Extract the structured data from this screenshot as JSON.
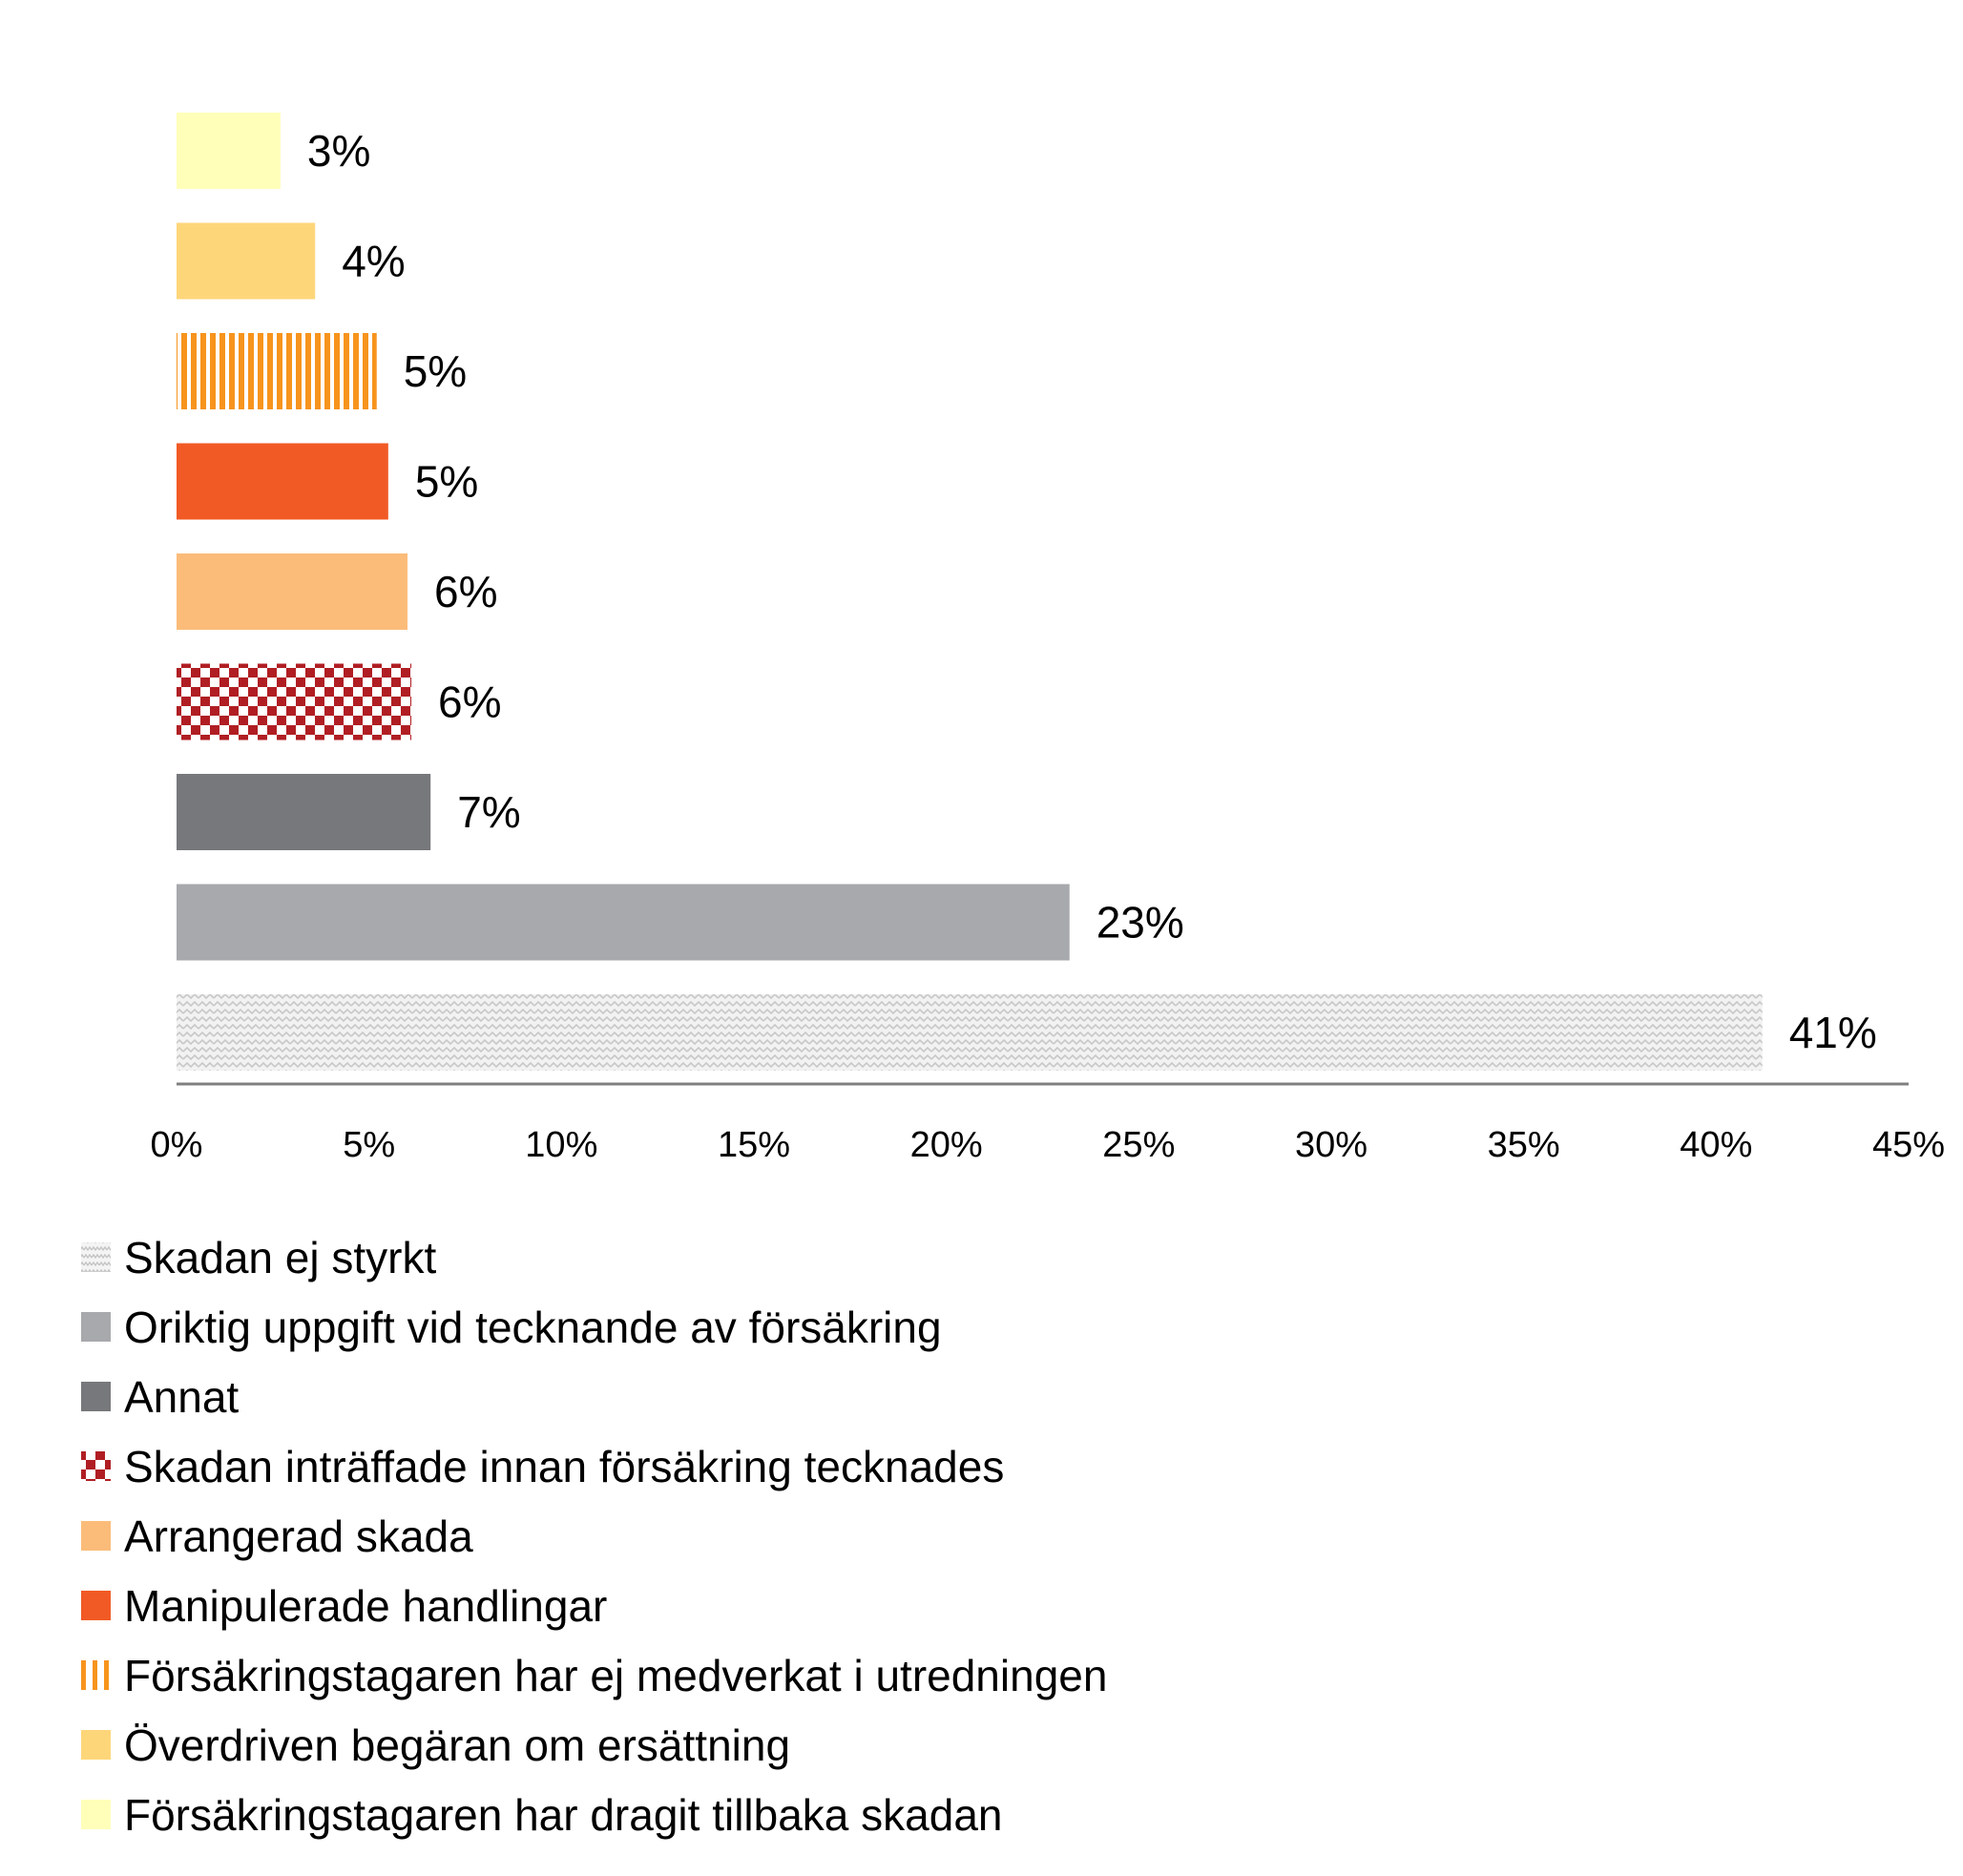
{
  "chart_data": {
    "type": "bar",
    "orientation": "horizontal",
    "categories": [
      "Skadan ej styrkt",
      "Oriktig uppgift vid tecknande av försäkring",
      "Annat",
      "Skadan inträffade innan försäkring tecknades",
      "Arrangerad skada",
      "Manipulerade handlingar",
      "Försäkringstagaren har ej medverkat i utredningen",
      "Överdriven begäran om ersättning",
      "Försäkringstagaren har dragit tillbaka skadan"
    ],
    "values": [
      41.2,
      23.2,
      6.6,
      6.1,
      6.0,
      5.5,
      5.2,
      3.6,
      2.7
    ],
    "value_labels": [
      "41%",
      "23%",
      "7%",
      "6%",
      "6%",
      "5%",
      "5%",
      "4%",
      "3%"
    ],
    "fills": [
      "pattern-wave",
      "solid",
      "solid",
      "pattern-checker",
      "solid",
      "solid",
      "pattern-stripes",
      "solid",
      "solid"
    ],
    "colors": [
      "#d6d6d6",
      "#a7a9ac",
      "#77787b",
      "#b01e23",
      "#fbbc7a",
      "#f15a24",
      "#f7941d",
      "#fed67a",
      "#ffffba"
    ],
    "xlim": [
      0,
      45
    ],
    "xticks": [
      "0%",
      "5%",
      "10%",
      "15%",
      "20%",
      "25%",
      "30%",
      "35%",
      "40%",
      "45%"
    ],
    "grid": false,
    "legend_position": "bottom"
  }
}
